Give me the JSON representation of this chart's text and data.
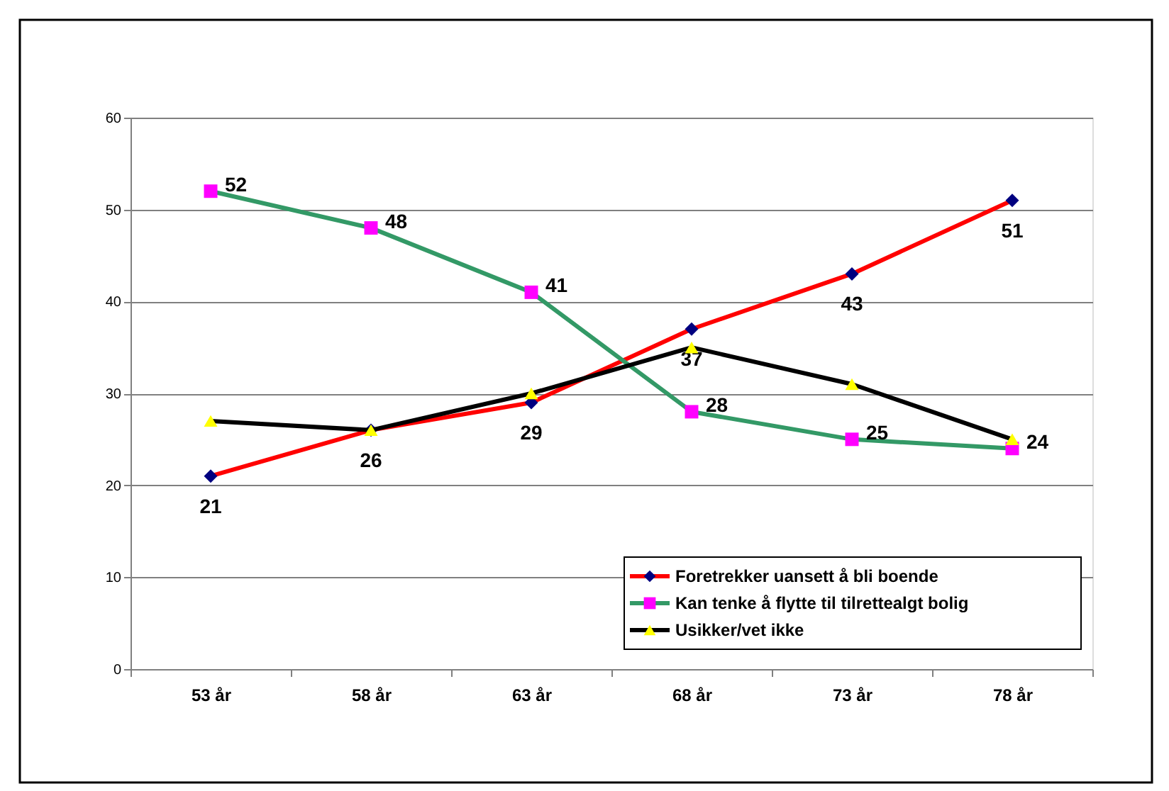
{
  "chart_data": {
    "type": "line",
    "categories": [
      "53 år",
      "58 år",
      "63 år",
      "68 år",
      "73 år",
      "78 år"
    ],
    "ylim": [
      0,
      60
    ],
    "yticks": [
      0,
      10,
      20,
      30,
      40,
      50,
      60
    ],
    "grid": "y",
    "legend": "bottom right",
    "line_style": "solid",
    "series": [
      {
        "name": "Foretrekker uansett å bli boende",
        "color": "#ff0000",
        "marker": "diamond",
        "colors": [
          "#000080",
          "#000080",
          "#000080",
          "#000080",
          "#000080",
          "#000080"
        ],
        "values": [
          21,
          26,
          29,
          37,
          43,
          51
        ],
        "value_labels": [
          "21",
          "26",
          "29",
          "37",
          "43",
          "51"
        ]
      },
      {
        "name": "Kan tenke å flytte til tilrettealgt bolig",
        "color": "#339966",
        "marker": "square",
        "colors": [
          "#ff00ff",
          "#ff00ff",
          "#ff00ff",
          "#ff00ff",
          "#ff00ff",
          "#ff00ff"
        ],
        "values": [
          52,
          48,
          41,
          28,
          25,
          24
        ],
        "value_labels": [
          "52",
          "48",
          "41",
          "28",
          "25",
          "24"
        ]
      },
      {
        "name": "Usikker/vet ikke",
        "color": "#000000",
        "marker": "triangle",
        "colors": [
          "#ffff00",
          "#ffff00",
          "#ffff00",
          "#ffff00",
          "#ffff00",
          "#ffff00"
        ],
        "values": [
          27,
          26,
          30,
          35,
          31,
          25
        ]
      }
    ]
  }
}
